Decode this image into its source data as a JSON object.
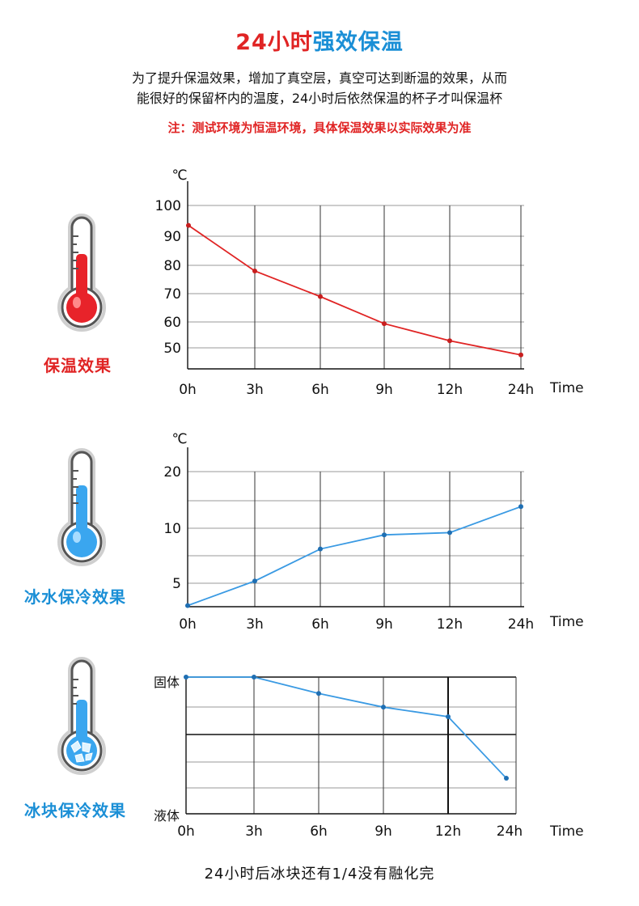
{
  "header": {
    "title_part1": "24小时",
    "title_part2": "强效保温",
    "desc_line1": "为了提升保温效果，增加了真空层，真空可达到断温的效果，从而",
    "desc_line2": "能很好的保留杯内的温度，24小时后依然保温的杯子才叫保温杯",
    "note": "注：测试环境为恒温环境，具体保温效果以实际效果为准"
  },
  "sections": [
    {
      "label": "保温效果",
      "label_color": "#e02424",
      "icon": "red-thermometer-icon"
    },
    {
      "label": "冰水保冷效果",
      "label_color": "#1b8fd6",
      "icon": "blue-thermometer-icon"
    },
    {
      "label": "冰块保冷效果",
      "label_color": "#1b8fd6",
      "icon": "ice-thermometer-icon"
    }
  ],
  "chart_data": [
    {
      "type": "line",
      "ylabel": "℃",
      "xlabel": "Time",
      "categories": [
        "0h",
        "3h",
        "6h",
        "9h",
        "12h",
        "24h"
      ],
      "y_ticks": [
        "100",
        "90",
        "80",
        "70",
        "60",
        "50"
      ],
      "ylim": [
        45,
        105
      ],
      "series": [
        {
          "values": [
            93,
            77,
            68,
            58.5,
            52.5,
            47.5
          ],
          "color": "#e02424"
        }
      ]
    },
    {
      "type": "line",
      "ylabel": "℃",
      "xlabel": "Time",
      "categories": [
        "0h",
        "3h",
        "6h",
        "9h",
        "12h",
        "24h"
      ],
      "y_ticks": [
        "20",
        "10",
        "5"
      ],
      "ylim": [
        2,
        24
      ],
      "series": [
        {
          "values": [
            2,
            5.3,
            9.6,
            11.5,
            11.8,
            15.3
          ],
          "color": "#3a9ae3"
        }
      ]
    },
    {
      "type": "line",
      "xlabel": "Time",
      "categories": [
        "0h",
        "3h",
        "6h",
        "9h",
        "12h",
        "24h"
      ],
      "y_ticks": [
        "固体",
        "液体"
      ],
      "ylim": [
        0,
        1
      ],
      "series": [
        {
          "values": [
            1,
            1,
            0.88,
            0.78,
            0.71,
            0.26
          ],
          "color": "#3a9ae3"
        }
      ]
    }
  ],
  "footer": "24小时后冰块还有1/4没有融化完"
}
